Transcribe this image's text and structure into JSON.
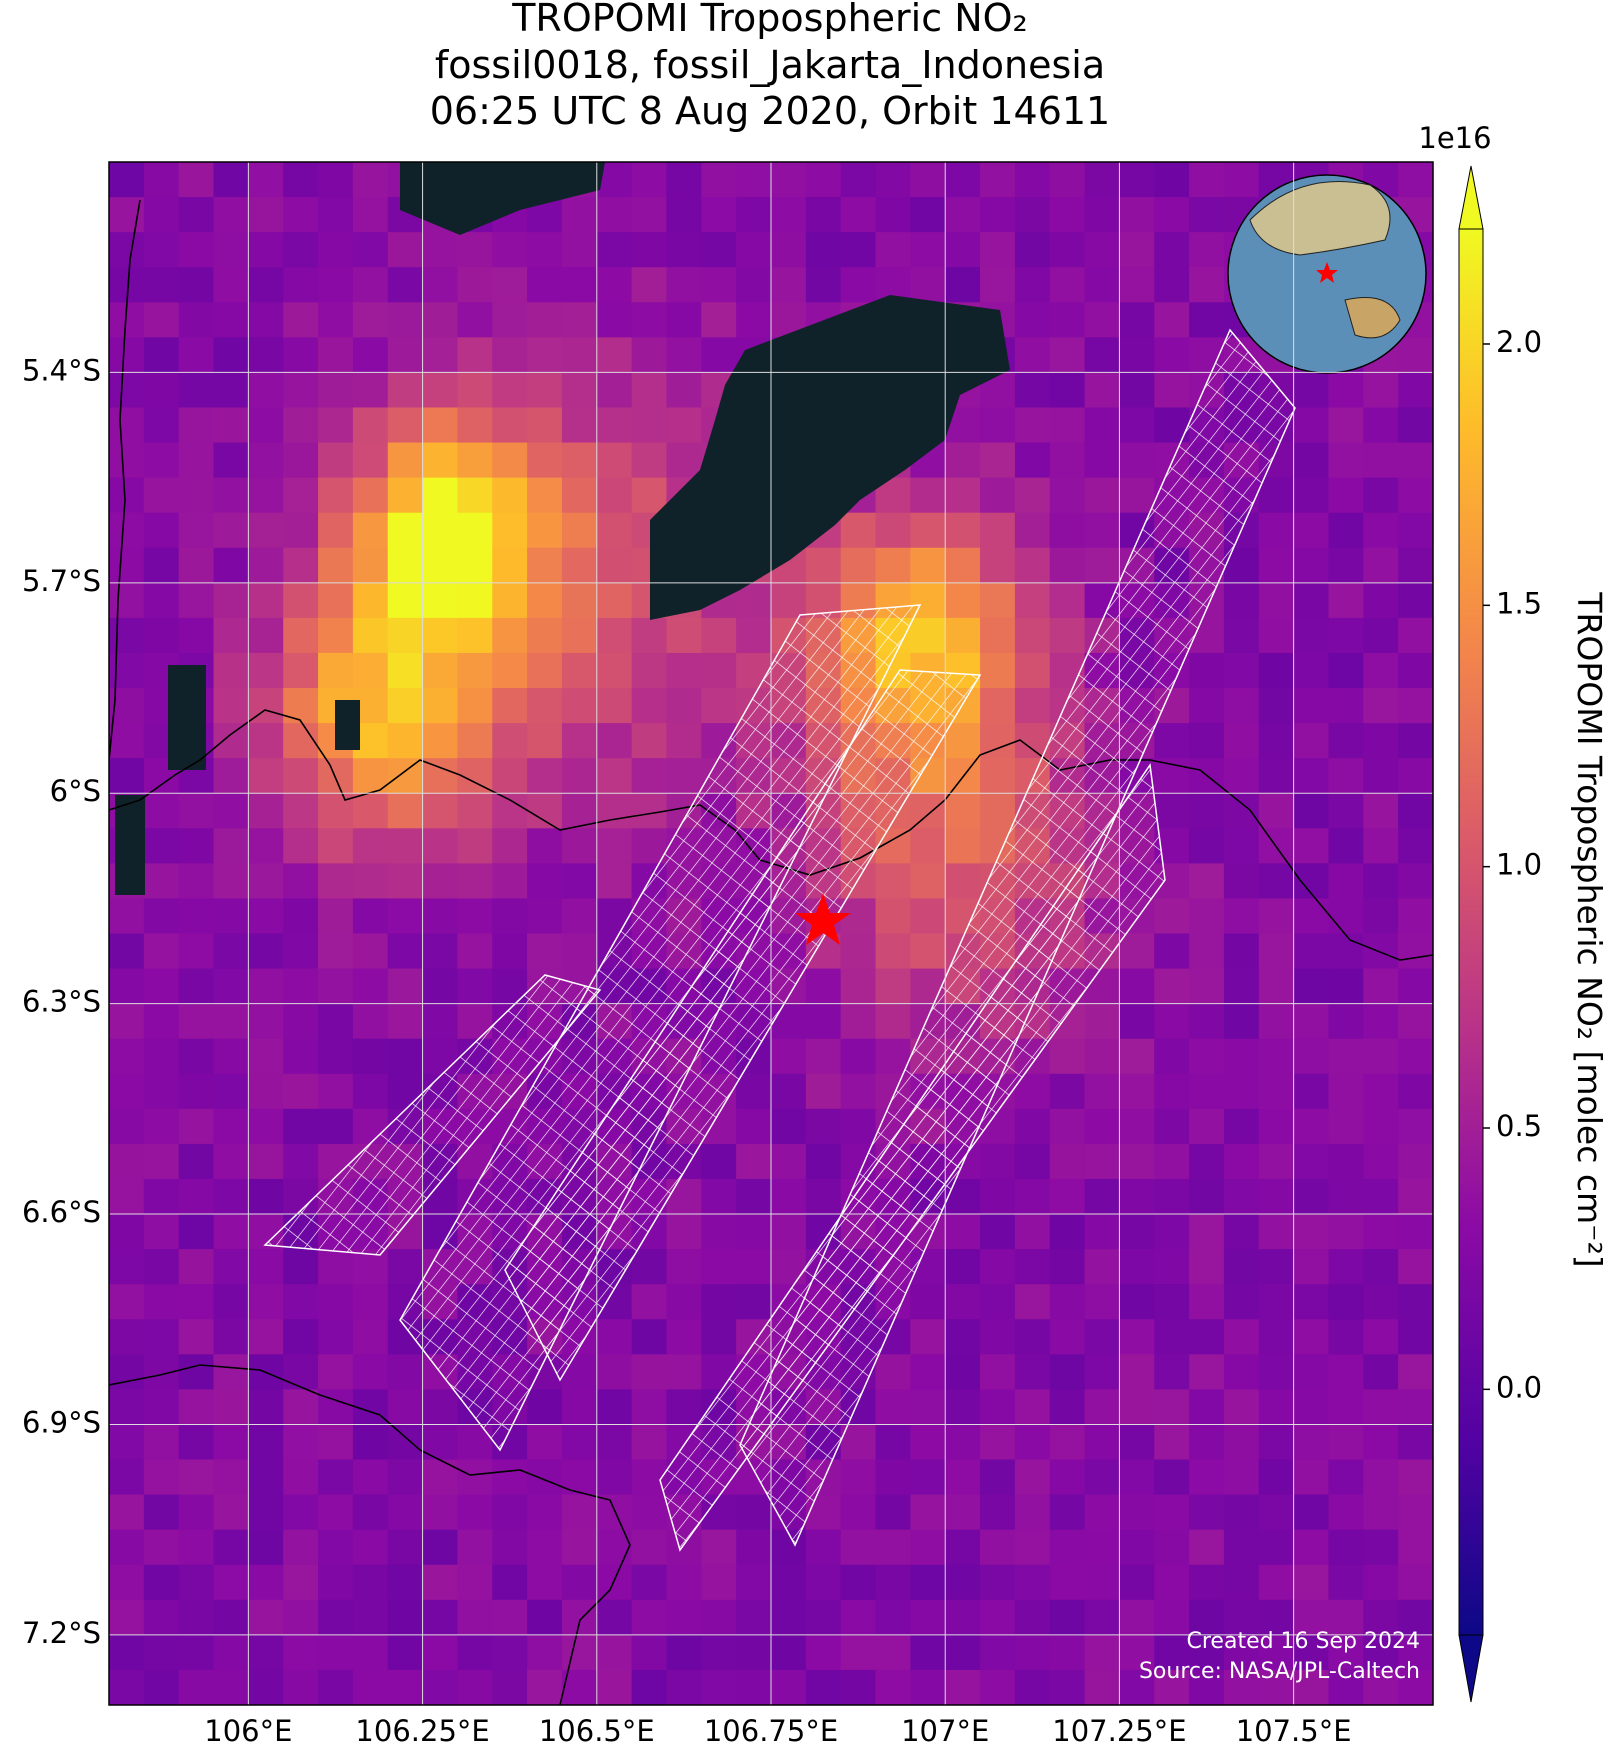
{
  "chart_data": {
    "type": "map",
    "title": [
      "TROPOMI Tropospheric NO₂",
      "fossil0018, fossil_Jakarta_Indonesia",
      "06:25 UTC 8 Aug 2020, Orbit 14611"
    ],
    "xlim": [
      105.8,
      107.7
    ],
    "ylim": [
      -5.1,
      -7.3
    ],
    "xticks": [
      {
        "value": 106,
        "label": "106°E"
      },
      {
        "value": 106.25,
        "label": "106.25°E"
      },
      {
        "value": 106.5,
        "label": "106.5°E"
      },
      {
        "value": 106.75,
        "label": "106.75°E"
      },
      {
        "value": 107,
        "label": "107°E"
      },
      {
        "value": 107.25,
        "label": "107.25°E"
      },
      {
        "value": 107.5,
        "label": "107.5°E"
      }
    ],
    "yticks": [
      {
        "value": -5.4,
        "label": "5.4°S"
      },
      {
        "value": -5.7,
        "label": "5.7°S"
      },
      {
        "value": -6,
        "label": "6°S"
      },
      {
        "value": -6.3,
        "label": "6.3°S"
      },
      {
        "value": -6.6,
        "label": "6.6°S"
      },
      {
        "value": -6.9,
        "label": "6.9°S"
      },
      {
        "value": -7.2,
        "label": "7.2°S"
      }
    ],
    "grid": true,
    "colorbar": {
      "label": "TROPOMI Tropospheric NO₂ [molec cm⁻²]",
      "scale_label": "1e16",
      "lim": [
        -0.47,
        2.22
      ],
      "ticks": [
        {
          "value": 0,
          "label": "0.0"
        },
        0.5,
        {
          "value": 1,
          "label": "1.0"
        },
        1.5,
        {
          "value": 2,
          "label": "2.0"
        }
      ]
    },
    "annotations": [
      "Created 16 Sep 2024",
      "Source: NASA/JPL-Caltech"
    ]
  }
}
